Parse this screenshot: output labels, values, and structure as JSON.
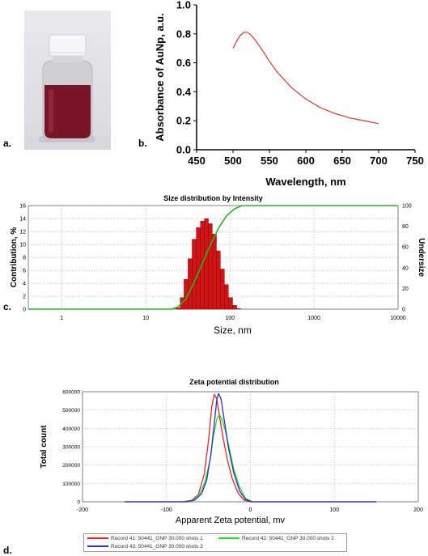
{
  "panel_labels": {
    "a": "a.",
    "b": "b.",
    "c": "c.",
    "d": "d."
  },
  "colors": {
    "liquid": "#7a1527",
    "cap": "#f7f7f7",
    "abs_line": "#e0443a",
    "bars": "#d21313",
    "undersize": "#22bb22",
    "record41": "#ee2222",
    "record42": "#22dd22",
    "record43": "#2233cc"
  },
  "chart_data": [
    {
      "id": "b",
      "type": "line",
      "title": "",
      "xlabel": "Wavelength, nm",
      "ylabel": "Absorbance of AuNp, a.u.",
      "xlim": [
        450,
        750
      ],
      "ylim": [
        0.0,
        1.0
      ],
      "xticks": [
        "450",
        "500",
        "550",
        "600",
        "650",
        "700",
        "750"
      ],
      "yticks": [
        "0.0",
        "0.2",
        "0.4",
        "0.6",
        "0.8",
        "1.0"
      ],
      "grid": false,
      "series": [
        {
          "x": [
            500,
            505,
            510,
            515,
            520,
            525,
            530,
            540,
            550,
            560,
            580,
            600,
            620,
            640,
            660,
            680,
            700
          ],
          "y": [
            0.7,
            0.75,
            0.79,
            0.81,
            0.81,
            0.79,
            0.76,
            0.69,
            0.61,
            0.54,
            0.43,
            0.35,
            0.29,
            0.25,
            0.22,
            0.2,
            0.18
          ]
        }
      ]
    },
    {
      "id": "c",
      "type": "bar",
      "title": "Size distribution by Intensity",
      "xlabel": "Size, nm",
      "ylabel": "Contribution, %",
      "y2label": "Undersize",
      "xscale": "log",
      "xlim": [
        0.4,
        10000
      ],
      "ylim": [
        0,
        16
      ],
      "y2lim": [
        0,
        100
      ],
      "xticks": [
        "1",
        "10",
        "100",
        "1000",
        "10000"
      ],
      "yticks": [
        "0",
        "2",
        "4",
        "6",
        "8",
        "10",
        "12",
        "14",
        "16"
      ],
      "y2ticks": [
        "0",
        "20",
        "40",
        "60",
        "80",
        "100"
      ],
      "grid": true,
      "bars": {
        "x": [
          24,
          27,
          30,
          33.5,
          37.5,
          42,
          47,
          52.5,
          58.5,
          65.5,
          73,
          81.5,
          91,
          102,
          114,
          127
        ],
        "values": [
          0.2,
          1.8,
          4.6,
          7.8,
          10.8,
          12.6,
          13.6,
          14.0,
          13.2,
          11.6,
          9.0,
          6.2,
          3.8,
          1.8,
          0.6,
          0.1
        ]
      },
      "undersize": {
        "x": [
          0.4,
          20,
          24,
          30,
          37.5,
          47,
          58.5,
          73,
          91,
          114,
          140,
          10000
        ],
        "y": [
          0,
          0,
          2,
          10,
          26,
          44,
          62,
          78,
          90,
          97,
          100,
          100
        ]
      }
    },
    {
      "id": "d",
      "type": "line",
      "title": "Zeta potential distribution",
      "xlabel": "Apparent Zeta potential, mv",
      "ylabel": "Total count",
      "xlim": [
        -200,
        200
      ],
      "ylim": [
        0,
        600000
      ],
      "xticks": [
        "-200",
        "-100",
        "0",
        "100",
        "200"
      ],
      "yticks": [
        "0",
        "100000",
        "200000",
        "300000",
        "400000",
        "500000",
        "600000"
      ],
      "grid": true,
      "series": [
        {
          "name": "Record 41: 50441_GNP 30.000 shots 1",
          "x": [
            -150,
            -80,
            -70,
            -62,
            -55,
            -50,
            -46,
            -43,
            -40,
            -37,
            -33,
            -28,
            -22,
            -15,
            -8,
            0,
            50,
            150
          ],
          "y": [
            0,
            0,
            8000,
            40000,
            150000,
            330000,
            520000,
            585000,
            560000,
            470000,
            360000,
            240000,
            130000,
            50000,
            10000,
            0,
            0,
            0
          ]
        },
        {
          "name": "Record 42: 50441_GNP 30.000 shots 2",
          "x": [
            -150,
            -75,
            -68,
            -60,
            -54,
            -48,
            -44,
            -40,
            -37,
            -34,
            -30,
            -25,
            -20,
            -13,
            -6,
            2,
            50,
            150
          ],
          "y": [
            0,
            0,
            10000,
            45000,
            110000,
            230000,
            360000,
            450000,
            475000,
            450000,
            390000,
            290000,
            180000,
            80000,
            20000,
            0,
            0,
            0
          ]
        },
        {
          "name": "Record 43: 50441_GNP 30.000 shots 3",
          "x": [
            -150,
            -75,
            -66,
            -58,
            -52,
            -47,
            -43,
            -40,
            -38,
            -35,
            -31,
            -26,
            -20,
            -13,
            -6,
            2,
            50,
            150
          ],
          "y": [
            0,
            0,
            10000,
            45000,
            120000,
            260000,
            430000,
            560000,
            590000,
            560000,
            440000,
            290000,
            160000,
            60000,
            12000,
            0,
            0,
            0
          ]
        }
      ]
    }
  ]
}
